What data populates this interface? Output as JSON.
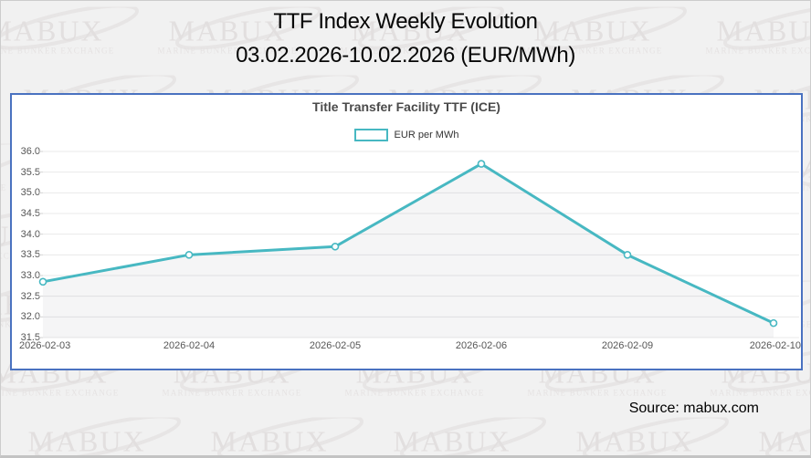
{
  "header": {
    "title_line1": "TTF Index Weekly Evolution",
    "title_line2": "03.02.2026-10.02.2026 (EUR/MWh)"
  },
  "watermark": {
    "brand": "MABUX",
    "tagline": "MARINE BUNKER EXCHANGE"
  },
  "chart_data": {
    "type": "line",
    "title": "Title Transfer Facility TTF (ICE)",
    "categories": [
      "2026-02-03",
      "2026-02-04",
      "2026-02-05",
      "2026-02-06",
      "2026-02-09",
      "2026-02-10"
    ],
    "series": [
      {
        "name": "EUR per MWh",
        "values": [
          32.85,
          33.5,
          33.7,
          35.7,
          33.5,
          31.85
        ]
      }
    ],
    "ylim": [
      31.5,
      36.0
    ],
    "ytick_step": 0.5,
    "xlabel": "",
    "ylabel": "",
    "grid": "horizontal",
    "legend_position": "top",
    "colors": {
      "line": "#47b8c2",
      "marker_fill": "#ffffff",
      "area_fill": "rgba(130,130,140,0.08)",
      "gridline": "#e9e9e9",
      "panel_border": "#4a72c0"
    }
  },
  "footer": {
    "source": "Source: mabux.com"
  }
}
